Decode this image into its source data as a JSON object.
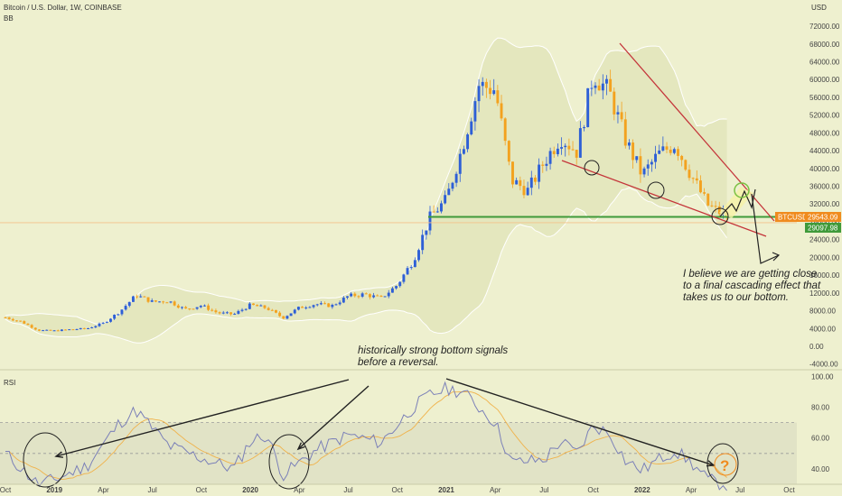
{
  "header": {
    "symbol_line": "Bitcoin / U.S. Dollar, 1W, COINBASE",
    "indicator_label": "BB",
    "rsi_label": "RSI",
    "currency_label": "USD"
  },
  "annotations": {
    "top_note": [
      "I believe we are getting close",
      "to a final cascading effect that",
      "takes us to our bottom."
    ],
    "bottom_note": [
      "historically strong bottom signals",
      "before a reversal."
    ],
    "question_mark": "?"
  },
  "price_tags": {
    "symbol": "BTCUSD",
    "last_price": "29543.09",
    "support_price": "29097.98"
  },
  "colors": {
    "background": "#eef0cf",
    "up_candle": "#2e5fd6",
    "down_candle": "#f3a21f",
    "band_fill": "#e4e7be",
    "support_line": "#3f9a3a",
    "trend_line": "#c4343a",
    "rsi_line": "#7b80b8",
    "rsi_signal": "#f0b24a"
  },
  "chart_data": {
    "type": "candlestick",
    "x_ticks": [
      "Oct",
      "2019",
      "Apr",
      "Jul",
      "Oct",
      "2020",
      "Apr",
      "Jul",
      "Oct",
      "2021",
      "Apr",
      "Jul",
      "Oct",
      "2022",
      "Apr",
      "Jul",
      "Oct"
    ],
    "y_ticks": [
      "72000.00",
      "68000.00",
      "64000.00",
      "60000.00",
      "56000.00",
      "52000.00",
      "48000.00",
      "44000.00",
      "40000.00",
      "36000.00",
      "32000.00",
      "28000.00",
      "24000.00",
      "20000.00",
      "16000.00",
      "12000.00",
      "8000.00",
      "4000.00",
      "0.00",
      "-4000.00"
    ],
    "rsi_ticks": [
      "100.00",
      "80.00",
      "60.00",
      "40.00"
    ],
    "support_level": 29097.98,
    "price_path": [
      [
        "2018-10",
        6500
      ],
      [
        "2018-11",
        5500
      ],
      [
        "2018-12",
        3600
      ],
      [
        "2019-01",
        3500
      ],
      [
        "2019-02",
        3800
      ],
      [
        "2019-03",
        4000
      ],
      [
        "2019-04",
        5200
      ],
      [
        "2019-05",
        7800
      ],
      [
        "2019-06",
        11500
      ],
      [
        "2019-07",
        10000
      ],
      [
        "2019-08",
        10200
      ],
      [
        "2019-09",
        8300
      ],
      [
        "2019-10",
        9200
      ],
      [
        "2019-11",
        7500
      ],
      [
        "2019-12",
        7200
      ],
      [
        "2020-01",
        9300
      ],
      [
        "2020-02",
        8600
      ],
      [
        "2020-03",
        6400
      ],
      [
        "2020-04",
        8700
      ],
      [
        "2020-05",
        9500
      ],
      [
        "2020-06",
        9100
      ],
      [
        "2020-07",
        11300
      ],
      [
        "2020-08",
        11700
      ],
      [
        "2020-09",
        10800
      ],
      [
        "2020-10",
        13800
      ],
      [
        "2020-11",
        19500
      ],
      [
        "2020-12",
        29000
      ],
      [
        "2021-01",
        33000
      ],
      [
        "2021-02",
        45000
      ],
      [
        "2021-03",
        58800
      ],
      [
        "2021-04",
        57700
      ],
      [
        "2021-05",
        37300
      ],
      [
        "2021-06",
        35000
      ],
      [
        "2021-07",
        41500
      ],
      [
        "2021-08",
        47100
      ],
      [
        "2021-09",
        43800
      ],
      [
        "2021-10",
        61300
      ],
      [
        "2021-11",
        57000
      ],
      [
        "2021-12",
        46200
      ],
      [
        "2022-01",
        38500
      ],
      [
        "2022-02",
        43200
      ],
      [
        "2022-03",
        45500
      ],
      [
        "2022-04",
        38500
      ],
      [
        "2022-05",
        31800
      ],
      [
        "2022-06",
        29543
      ]
    ],
    "rsi_path": [
      [
        "2018-10",
        50
      ],
      [
        "2018-12",
        30
      ],
      [
        "2019-01",
        33
      ],
      [
        "2019-03",
        42
      ],
      [
        "2019-05",
        70
      ],
      [
        "2019-06",
        78
      ],
      [
        "2019-08",
        55
      ],
      [
        "2019-10",
        47
      ],
      [
        "2019-12",
        40
      ],
      [
        "2020-01",
        58
      ],
      [
        "2020-02",
        62
      ],
      [
        "2020-03",
        36
      ],
      [
        "2020-05",
        52
      ],
      [
        "2020-07",
        62
      ],
      [
        "2020-09",
        57
      ],
      [
        "2020-11",
        80
      ],
      [
        "2020-12",
        88
      ],
      [
        "2021-01",
        92
      ],
      [
        "2021-02",
        90
      ],
      [
        "2021-04",
        70
      ],
      [
        "2021-05",
        44
      ],
      [
        "2021-07",
        46
      ],
      [
        "2021-08",
        58
      ],
      [
        "2021-09",
        50
      ],
      [
        "2021-10",
        68
      ],
      [
        "2021-11",
        63
      ],
      [
        "2021-12",
        45
      ],
      [
        "2022-01",
        39
      ],
      [
        "2022-02",
        46
      ],
      [
        "2022-03",
        52
      ],
      [
        "2022-04",
        44
      ],
      [
        "2022-05",
        33
      ],
      [
        "2022-06",
        30
      ]
    ]
  }
}
